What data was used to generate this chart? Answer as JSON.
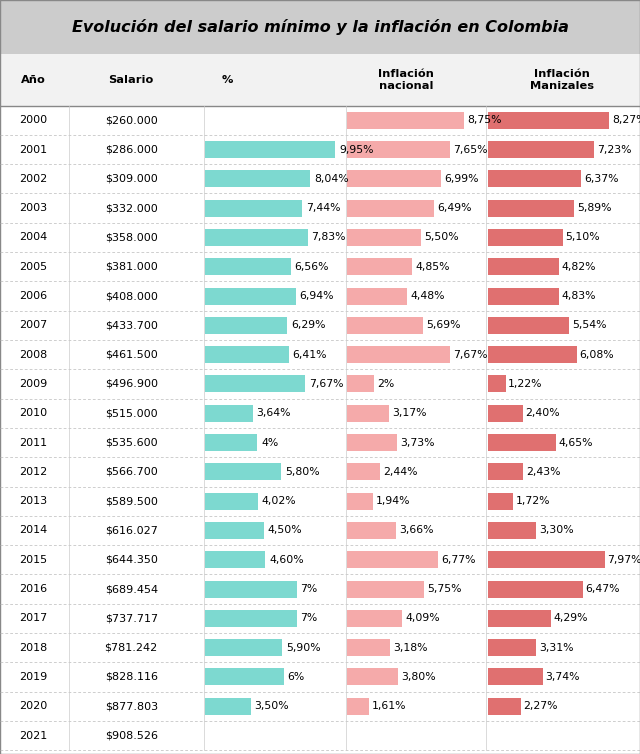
{
  "title": "Evolución del salario mínimo y la inflación en Colombia",
  "rows": [
    {
      "year": "2000",
      "salary": "$260.000",
      "pct": null,
      "inf_nac": 8.75,
      "inf_man": 8.27
    },
    {
      "year": "2001",
      "salary": "$286.000",
      "pct": 9.95,
      "inf_nac": 7.65,
      "inf_man": 7.23
    },
    {
      "year": "2002",
      "salary": "$309.000",
      "pct": 8.04,
      "inf_nac": 6.99,
      "inf_man": 6.37
    },
    {
      "year": "2003",
      "salary": "$332.000",
      "pct": 7.44,
      "inf_nac": 6.49,
      "inf_man": 5.89
    },
    {
      "year": "2004",
      "salary": "$358.000",
      "pct": 7.83,
      "inf_nac": 5.5,
      "inf_man": 5.1
    },
    {
      "year": "2005",
      "salary": "$381.000",
      "pct": 6.56,
      "inf_nac": 4.85,
      "inf_man": 4.82
    },
    {
      "year": "2006",
      "salary": "$408.000",
      "pct": 6.94,
      "inf_nac": 4.48,
      "inf_man": 4.83
    },
    {
      "year": "2007",
      "salary": "$433.700",
      "pct": 6.29,
      "inf_nac": 5.69,
      "inf_man": 5.54
    },
    {
      "year": "2008",
      "salary": "$461.500",
      "pct": 6.41,
      "inf_nac": 7.67,
      "inf_man": 6.08
    },
    {
      "year": "2009",
      "salary": "$496.900",
      "pct": 7.67,
      "inf_nac": 2.0,
      "inf_man": 1.22
    },
    {
      "year": "2010",
      "salary": "$515.000",
      "pct": 3.64,
      "inf_nac": 3.17,
      "inf_man": 2.4
    },
    {
      "year": "2011",
      "salary": "$535.600",
      "pct": 4.0,
      "inf_nac": 3.73,
      "inf_man": 4.65
    },
    {
      "year": "2012",
      "salary": "$566.700",
      "pct": 5.8,
      "inf_nac": 2.44,
      "inf_man": 2.43
    },
    {
      "year": "2013",
      "salary": "$589.500",
      "pct": 4.02,
      "inf_nac": 1.94,
      "inf_man": 1.72
    },
    {
      "year": "2014",
      "salary": "$616.027",
      "pct": 4.5,
      "inf_nac": 3.66,
      "inf_man": 3.3
    },
    {
      "year": "2015",
      "salary": "$644.350",
      "pct": 4.6,
      "inf_nac": 6.77,
      "inf_man": 7.97
    },
    {
      "year": "2016",
      "salary": "$689.454",
      "pct": 7.0,
      "inf_nac": 5.75,
      "inf_man": 6.47
    },
    {
      "year": "2017",
      "salary": "$737.717",
      "pct": 7.0,
      "inf_nac": 4.09,
      "inf_man": 4.29
    },
    {
      "year": "2018",
      "salary": "$781.242",
      "pct": 5.9,
      "inf_nac": 3.18,
      "inf_man": 3.31
    },
    {
      "year": "2019",
      "salary": "$828.116",
      "pct": 6.0,
      "inf_nac": 3.8,
      "inf_man": 3.74
    },
    {
      "year": "2020",
      "salary": "$877.803",
      "pct": 3.5,
      "inf_nac": 1.61,
      "inf_man": 2.27
    },
    {
      "year": "2021",
      "salary": "$908.526",
      "pct": null,
      "inf_nac": null,
      "inf_man": null
    }
  ],
  "pct_labels": [
    null,
    "9,95%",
    "8,04%",
    "7,44%",
    "7,83%",
    "6,56%",
    "6,94%",
    "6,29%",
    "6,41%",
    "7,67%",
    "3,64%",
    "4%",
    "5,80%",
    "4,02%",
    "4,50%",
    "4,60%",
    "7%",
    "7%",
    "5,90%",
    "6%",
    "3,50%",
    null
  ],
  "inf_nac_labels": [
    "8,75%",
    "7,65%",
    "6,99%",
    "6,49%",
    "5,50%",
    "4,85%",
    "4,48%",
    "5,69%",
    "7,67%",
    "2%",
    "3,17%",
    "3,73%",
    "2,44%",
    "1,94%",
    "3,66%",
    "6,77%",
    "5,75%",
    "4,09%",
    "3,18%",
    "3,80%",
    "1,61%",
    null
  ],
  "inf_man_labels": [
    "8,27%",
    "7,23%",
    "6,37%",
    "5,89%",
    "5,10%",
    "4,82%",
    "4,83%",
    "5,54%",
    "6,08%",
    "1,22%",
    "2,40%",
    "4,65%",
    "2,43%",
    "1,72%",
    "3,30%",
    "7,97%",
    "6,47%",
    "4,29%",
    "3,31%",
    "3,74%",
    "2,27%",
    null
  ],
  "color_cyan": "#7DD9D0",
  "color_pink_light": "#F5AAAA",
  "color_pink_dark": "#E07070",
  "max_pct": 10.0,
  "max_inf": 10.0
}
